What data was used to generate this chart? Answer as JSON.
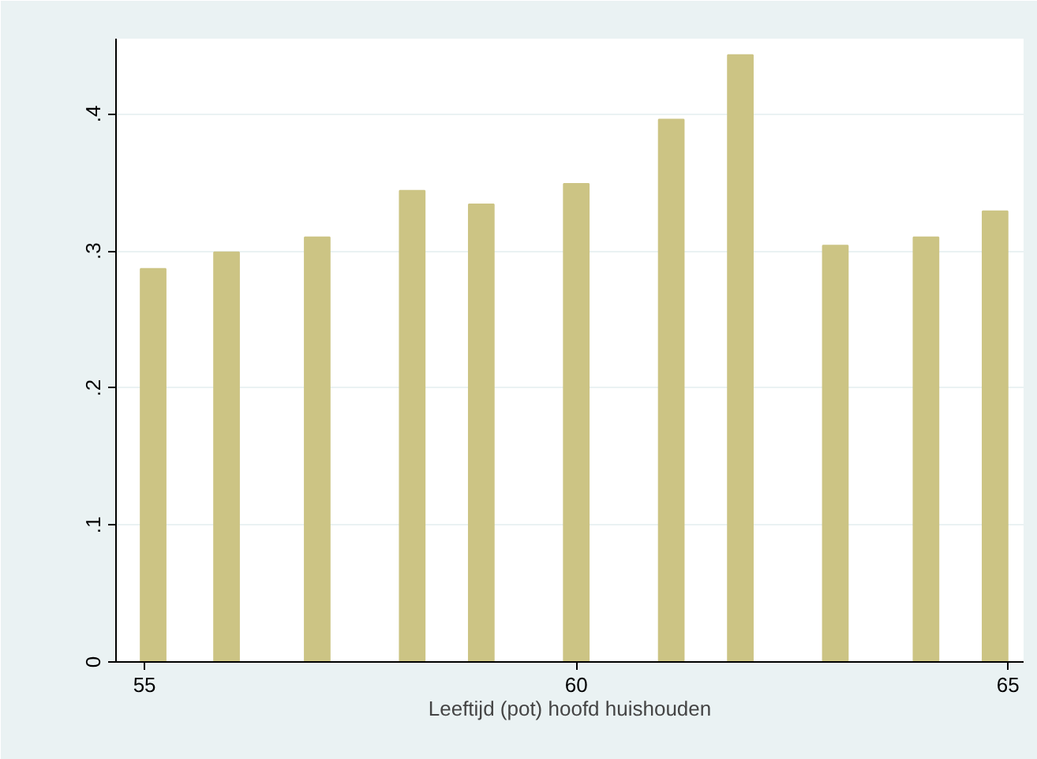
{
  "chart_data": {
    "type": "bar",
    "xlabel": "Leeftijd (pot) hoofd huishouden",
    "x": [
      55.1,
      55.95,
      57.0,
      58.1,
      58.9,
      60.0,
      61.1,
      61.9,
      63.0,
      64.05,
      64.85
    ],
    "values": [
      0.287,
      0.299,
      0.31,
      0.344,
      0.334,
      0.349,
      0.396,
      0.443,
      0.304,
      0.31,
      0.329
    ],
    "color": "#ccc484",
    "xlim": [
      54.67,
      65.18
    ],
    "xticks": [
      55,
      60,
      65
    ],
    "ylim": [
      0,
      0.455
    ],
    "yticks": [
      0,
      {
        "value": 0.1,
        "label": ".1"
      },
      {
        "value": 0.2,
        "label": ".2"
      },
      {
        "value": 0.3,
        "label": ".3"
      },
      {
        "value": 0.4,
        "label": ".4"
      }
    ],
    "grid": "y"
  }
}
